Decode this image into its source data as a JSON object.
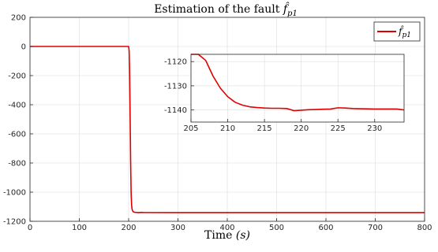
{
  "chart_data": [
    {
      "id": "main",
      "type": "line",
      "title": "Estimation of the fault f̂_p1",
      "title_text": "Estimation of the fault ",
      "title_symbol": "f̂",
      "title_sub": "p1",
      "xlabel": "Time (s)",
      "xlabel_text": "Time ",
      "xlabel_var": "(s)",
      "ylabel": "",
      "xlim": [
        0,
        800
      ],
      "ylim": [
        -1200,
        200
      ],
      "xticks": [
        0,
        100,
        200,
        300,
        400,
        500,
        600,
        700,
        800
      ],
      "yticks": [
        200,
        0,
        -200,
        -400,
        -600,
        -800,
        -1000,
        -1200
      ],
      "grid": true,
      "legend_position": "top-right",
      "series": [
        {
          "name": "f̂_p1",
          "name_symbol": "f̂",
          "name_sub": "p1",
          "color": "#e00000",
          "x": [
            0,
            200,
            201,
            202,
            203,
            204,
            205,
            206,
            207,
            208,
            209,
            210,
            212,
            215,
            220,
            225,
            230,
            300,
            400,
            500,
            600,
            700,
            800
          ],
          "y": [
            0,
            0,
            -30,
            -180,
            -480,
            -780,
            -1000,
            -1090,
            -1118,
            -1128,
            -1133,
            -1136,
            -1138,
            -1139,
            -1140,
            -1139,
            -1139.5,
            -1140,
            -1140,
            -1140,
            -1140,
            -1140,
            -1140
          ]
        }
      ]
    },
    {
      "id": "inset",
      "type": "line",
      "xlim": [
        205,
        234
      ],
      "ylim": [
        -1145,
        -1117
      ],
      "xticks": [
        205,
        210,
        215,
        220,
        225,
        230
      ],
      "yticks": [
        -1120,
        -1130,
        -1140
      ],
      "grid": true,
      "series": [
        {
          "color": "#e00000",
          "x": [
            205,
            206,
            207,
            208,
            209,
            210,
            211,
            212,
            213,
            214,
            215,
            216,
            217,
            218,
            218.5,
            219,
            220,
            221,
            222,
            223,
            224,
            225,
            226,
            227,
            228,
            230,
            232,
            233,
            234
          ],
          "y": [
            -1105,
            -1113,
            -1119.5,
            -1126,
            -1131,
            -1134.5,
            -1136.8,
            -1138,
            -1138.7,
            -1139,
            -1139.2,
            -1139.3,
            -1139.3,
            -1139.4,
            -1139.8,
            -1140.3,
            -1140.1,
            -1139.9,
            -1139.8,
            -1139.7,
            -1139.6,
            -1139.1,
            -1139.2,
            -1139.4,
            -1139.5,
            -1139.6,
            -1139.6,
            -1139.6,
            -1140.0
          ]
        }
      ]
    }
  ]
}
